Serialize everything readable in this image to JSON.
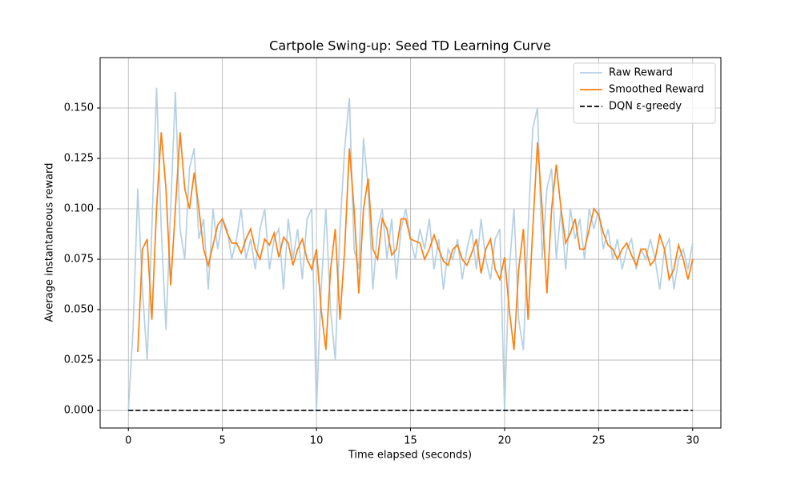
{
  "chart_data": {
    "type": "line",
    "title": "Cartpole Swing-up: Seed TD Learning Curve",
    "xlabel": "Time elapsed (seconds)",
    "ylabel": "Average instantaneous reward",
    "xlim": [
      -1.5,
      31.5
    ],
    "ylim": [
      -0.0087,
      0.175
    ],
    "xticks": [
      0,
      5,
      10,
      15,
      20,
      25,
      30
    ],
    "yticks": [
      {
        "value": 0,
        "label": "0.000"
      },
      {
        "value": 0.025,
        "label": "0.025"
      },
      {
        "value": 0.05,
        "label": "0.050"
      },
      {
        "value": 0.075,
        "label": "0.075"
      },
      {
        "value": 0.1,
        "label": "0.100"
      },
      {
        "value": 0.125,
        "label": "0.125"
      },
      {
        "value": 0.15,
        "label": "0.150"
      }
    ],
    "grid": true,
    "legend": "upper right",
    "series": [
      {
        "name": "Raw Reward",
        "color": "#b4d0e5",
        "linestyle": "solid",
        "x": [
          0,
          0.25,
          0.5,
          0.75,
          1,
          1.25,
          1.5,
          1.75,
          2,
          2.25,
          2.5,
          2.75,
          3,
          3.25,
          3.5,
          3.75,
          4,
          4.25,
          4.5,
          4.75,
          5,
          5.25,
          5.5,
          5.75,
          6,
          6.25,
          6.5,
          6.75,
          7,
          7.25,
          7.5,
          7.75,
          8,
          8.25,
          8.5,
          8.75,
          9,
          9.25,
          9.5,
          9.75,
          10,
          10.25,
          10.5,
          10.75,
          11,
          11.25,
          11.5,
          11.75,
          12,
          12.25,
          12.5,
          12.75,
          13,
          13.25,
          13.5,
          13.75,
          14,
          14.25,
          14.5,
          14.75,
          15,
          15.25,
          15.5,
          15.75,
          16,
          16.25,
          16.5,
          16.75,
          17,
          17.25,
          17.5,
          17.75,
          18,
          18.25,
          18.5,
          18.75,
          19,
          19.25,
          19.5,
          19.75,
          20,
          20.25,
          20.5,
          20.75,
          21,
          21.25,
          21.5,
          21.75,
          22,
          22.25,
          22.5,
          22.75,
          23,
          23.25,
          23.5,
          23.75,
          24,
          24.25,
          24.5,
          24.75,
          25,
          25.25,
          25.5,
          25.75,
          26,
          26.25,
          26.5,
          26.75,
          27,
          27.25,
          27.5,
          27.75,
          28,
          28.25,
          28.5,
          28.75,
          29,
          29.25,
          29.5,
          29.75,
          30
        ],
        "values": [
          0,
          0.04,
          0.11,
          0.06,
          0.025,
          0.09,
          0.16,
          0.09,
          0.04,
          0.1,
          0.158,
          0.09,
          0.075,
          0.12,
          0.13,
          0.085,
          0.095,
          0.06,
          0.1,
          0.08,
          0.095,
          0.09,
          0.075,
          0.085,
          0.1,
          0.075,
          0.085,
          0.07,
          0.09,
          0.1,
          0.07,
          0.085,
          0.09,
          0.06,
          0.095,
          0.075,
          0.09,
          0.065,
          0.095,
          0.1,
          0,
          0.06,
          0.1,
          0.05,
          0.025,
          0.09,
          0.13,
          0.155,
          0.08,
          0.07,
          0.135,
          0.11,
          0.06,
          0.09,
          0.1,
          0.075,
          0.095,
          0.065,
          0.09,
          0.1,
          0.085,
          0.075,
          0.09,
          0.08,
          0.095,
          0.07,
          0.085,
          0.06,
          0.08,
          0.075,
          0.085,
          0.065,
          0.08,
          0.09,
          0.07,
          0.095,
          0.075,
          0.065,
          0.085,
          0.09,
          0,
          0.07,
          0.1,
          0.045,
          0.03,
          0.09,
          0.14,
          0.15,
          0.075,
          0.11,
          0.12,
          0.075,
          0.1,
          0.07,
          0.1,
          0.085,
          0.095,
          0.075,
          0.1,
          0.09,
          0.1,
          0.08,
          0.09,
          0.075,
          0.085,
          0.07,
          0.08,
          0.085,
          0.07,
          0.08,
          0.075,
          0.085,
          0.075,
          0.06,
          0.08,
          0.085,
          0.06,
          0.075,
          0.08,
          0.07,
          0.083
        ]
      },
      {
        "name": "Smoothed Reward",
        "color": "#ff7f0e",
        "linestyle": "solid",
        "x": [
          0.5,
          0.75,
          1,
          1.25,
          1.5,
          1.75,
          2,
          2.25,
          2.5,
          2.75,
          3,
          3.25,
          3.5,
          3.75,
          4,
          4.25,
          4.5,
          4.75,
          5,
          5.25,
          5.5,
          5.75,
          6,
          6.25,
          6.5,
          6.75,
          7,
          7.25,
          7.5,
          7.75,
          8,
          8.25,
          8.5,
          8.75,
          9,
          9.25,
          9.5,
          9.75,
          10,
          10.25,
          10.5,
          10.75,
          11,
          11.25,
          11.5,
          11.75,
          12,
          12.25,
          12.5,
          12.75,
          13,
          13.25,
          13.5,
          13.75,
          14,
          14.25,
          14.5,
          14.75,
          15,
          15.25,
          15.5,
          15.75,
          16,
          16.25,
          16.5,
          16.75,
          17,
          17.25,
          17.5,
          17.75,
          18,
          18.25,
          18.5,
          18.75,
          19,
          19.25,
          19.5,
          19.75,
          20,
          20.25,
          20.5,
          20.75,
          21,
          21.25,
          21.5,
          21.75,
          22,
          22.25,
          22.5,
          22.75,
          23,
          23.25,
          23.5,
          23.75,
          24,
          24.25,
          24.5,
          24.75,
          25,
          25.25,
          25.5,
          25.75,
          26,
          26.25,
          26.5,
          26.75,
          27,
          27.25,
          27.5,
          27.75,
          28,
          28.25,
          28.5,
          28.75,
          29,
          29.25,
          29.5,
          29.75,
          30
        ],
        "values": [
          0.029,
          0.08,
          0.085,
          0.045,
          0.1,
          0.138,
          0.11,
          0.062,
          0.1,
          0.138,
          0.11,
          0.1,
          0.118,
          0.1,
          0.08,
          0.072,
          0.082,
          0.092,
          0.095,
          0.088,
          0.083,
          0.083,
          0.078,
          0.085,
          0.09,
          0.08,
          0.075,
          0.085,
          0.082,
          0.088,
          0.076,
          0.086,
          0.083,
          0.072,
          0.08,
          0.085,
          0.075,
          0.07,
          0.08,
          0.05,
          0.03,
          0.07,
          0.09,
          0.045,
          0.08,
          0.13,
          0.1,
          0.058,
          0.1,
          0.115,
          0.08,
          0.075,
          0.095,
          0.09,
          0.077,
          0.08,
          0.095,
          0.095,
          0.085,
          0.084,
          0.083,
          0.075,
          0.08,
          0.087,
          0.08,
          0.074,
          0.072,
          0.08,
          0.082,
          0.075,
          0.072,
          0.078,
          0.085,
          0.068,
          0.08,
          0.085,
          0.07,
          0.065,
          0.076,
          0.05,
          0.03,
          0.07,
          0.09,
          0.045,
          0.09,
          0.133,
          0.1,
          0.058,
          0.1,
          0.122,
          0.1,
          0.083,
          0.088,
          0.095,
          0.08,
          0.08,
          0.09,
          0.1,
          0.097,
          0.088,
          0.082,
          0.08,
          0.075,
          0.08,
          0.083,
          0.077,
          0.072,
          0.08,
          0.08,
          0.072,
          0.075,
          0.087,
          0.08,
          0.065,
          0.07,
          0.082,
          0.075,
          0.065,
          0.075
        ]
      },
      {
        "name": "DQN ε-greedy",
        "color": "#000000",
        "linestyle": "dashed",
        "x": [
          0,
          30
        ],
        "values": [
          0,
          0
        ]
      }
    ]
  }
}
